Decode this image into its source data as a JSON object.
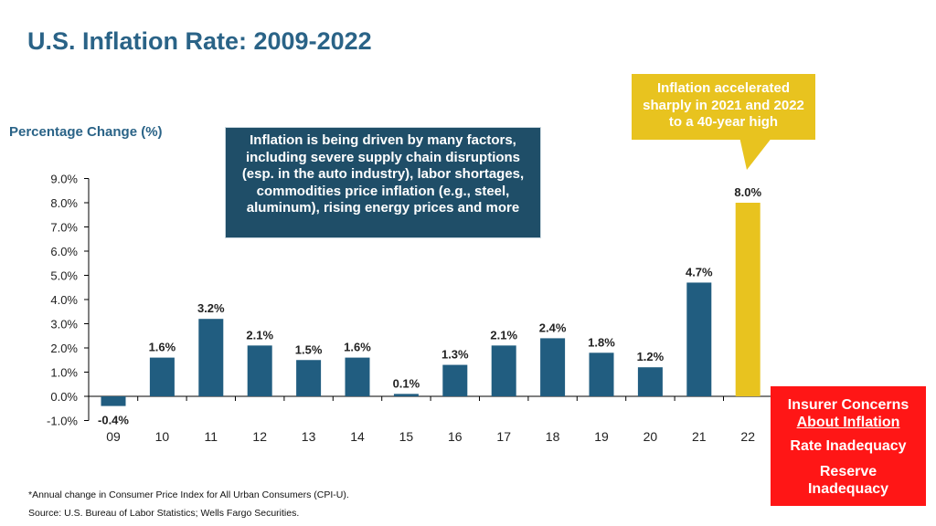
{
  "title": "U.S. Inflation Rate:  2009-2022",
  "y_axis_label": "Percentage Change (%)",
  "callout_factors": "Inflation is being driven by many factors, including severe supply chain disruptions (esp. in the auto industry), labor shortages, commodities price inflation (e.g., steel, aluminum), rising energy prices and more",
  "callout_accelerated": "Inflation accelerated sharply in 2021 and 2022 to a 40-year high",
  "concerns": {
    "heading": "Insurer Concerns",
    "heading2": "About Inflation",
    "items": [
      "Rate Inadequacy",
      "Reserve Inadequacy"
    ]
  },
  "footnote": "*Annual change in Consumer Price Index for All Urban Consumers (CPI-U).",
  "source": "Source: U.S. Bureau of Labor Statistics; Wells Fargo Securities.",
  "colors": {
    "bar": "#215d80",
    "highlight": "#e8c31f",
    "title": "#2a6387",
    "callout": "#1f4e68",
    "concerns": "#ff1616"
  },
  "chart_data": {
    "type": "bar",
    "categories": [
      "09",
      "10",
      "11",
      "12",
      "13",
      "14",
      "15",
      "16",
      "17",
      "18",
      "19",
      "20",
      "21",
      "22"
    ],
    "values": [
      -0.4,
      1.6,
      3.2,
      2.1,
      1.5,
      1.6,
      0.1,
      1.3,
      2.1,
      2.4,
      1.8,
      1.2,
      4.7,
      8.0
    ],
    "labels": [
      "-0.4%",
      "1.6%",
      "3.2%",
      "2.1%",
      "1.5%",
      "1.6%",
      "0.1%",
      "1.3%",
      "2.1%",
      "2.4%",
      "1.8%",
      "1.2%",
      "4.7%",
      "8.0%"
    ],
    "highlight_category": "22",
    "yticks": [
      "9.0%",
      "8.0%",
      "7.0%",
      "6.0%",
      "5.0%",
      "4.0%",
      "3.0%",
      "2.0%",
      "1.0%",
      "0.0%",
      "-1.0%"
    ],
    "ylim": [
      -1,
      9
    ],
    "title": "U.S. Inflation Rate:  2009-2022",
    "xlabel": "",
    "ylabel": "Percentage Change (%)"
  }
}
